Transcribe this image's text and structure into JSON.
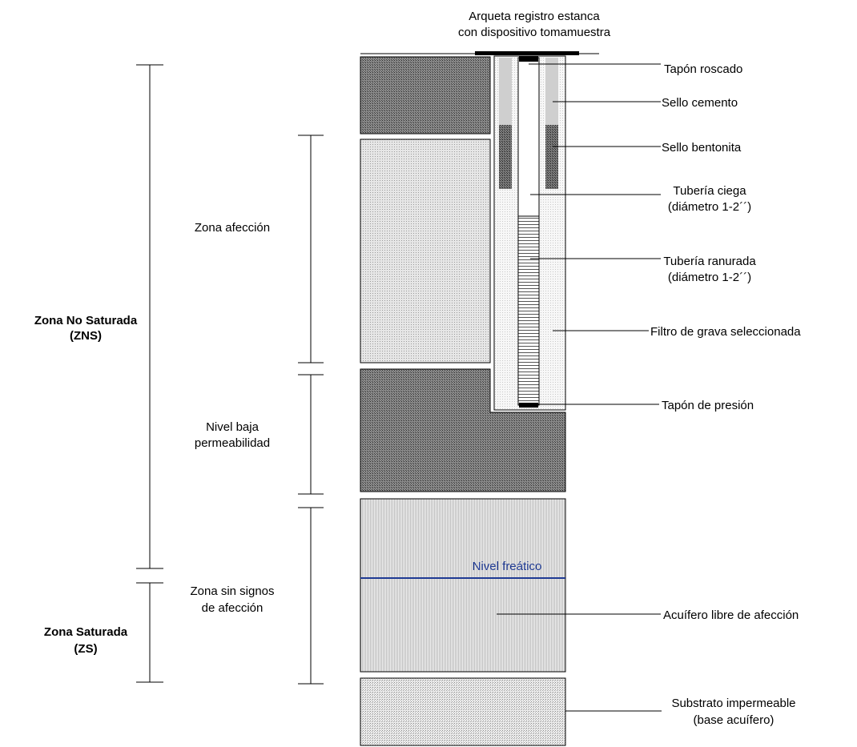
{
  "top_label": [
    "Arqueta registro estanca",
    "con dispositivo tomamuestra"
  ],
  "left_zones": {
    "zns": [
      "Zona No Saturada",
      "(ZNS)"
    ],
    "zs": [
      "Zona Saturada",
      "(ZS)"
    ]
  },
  "mid_zones": {
    "afeccion": "Zona afección",
    "baja": [
      "Nivel baja",
      "permeabilidad"
    ],
    "sin_signos": [
      "Zona sin  signos",
      "de afección"
    ]
  },
  "water_table": "Nivel freático",
  "callouts": {
    "tapon_roscado": "Tapón roscado",
    "sello_cemento": "Sello cemento",
    "sello_bentonita": "Sello bentonita",
    "tuberia_ciega": [
      "Tubería ciega",
      "(diámetro 1-2´´)"
    ],
    "tuberia_ranurada": [
      "Tubería ranurada",
      "(diámetro 1-2´´)"
    ],
    "filtro": "Filtro de grava seleccionada",
    "tapon_presion": "Tapón de presión",
    "acuifero": "Acuífero libre de afección",
    "substrato": [
      "Substrato impermeable",
      "(base acuífero)"
    ]
  },
  "colors": {
    "water_table_line": "#1f3a93",
    "cement_seal": "#cfcfcf",
    "dark_layer": "#6a6a6a",
    "light_layer": "#d4d4d4"
  }
}
